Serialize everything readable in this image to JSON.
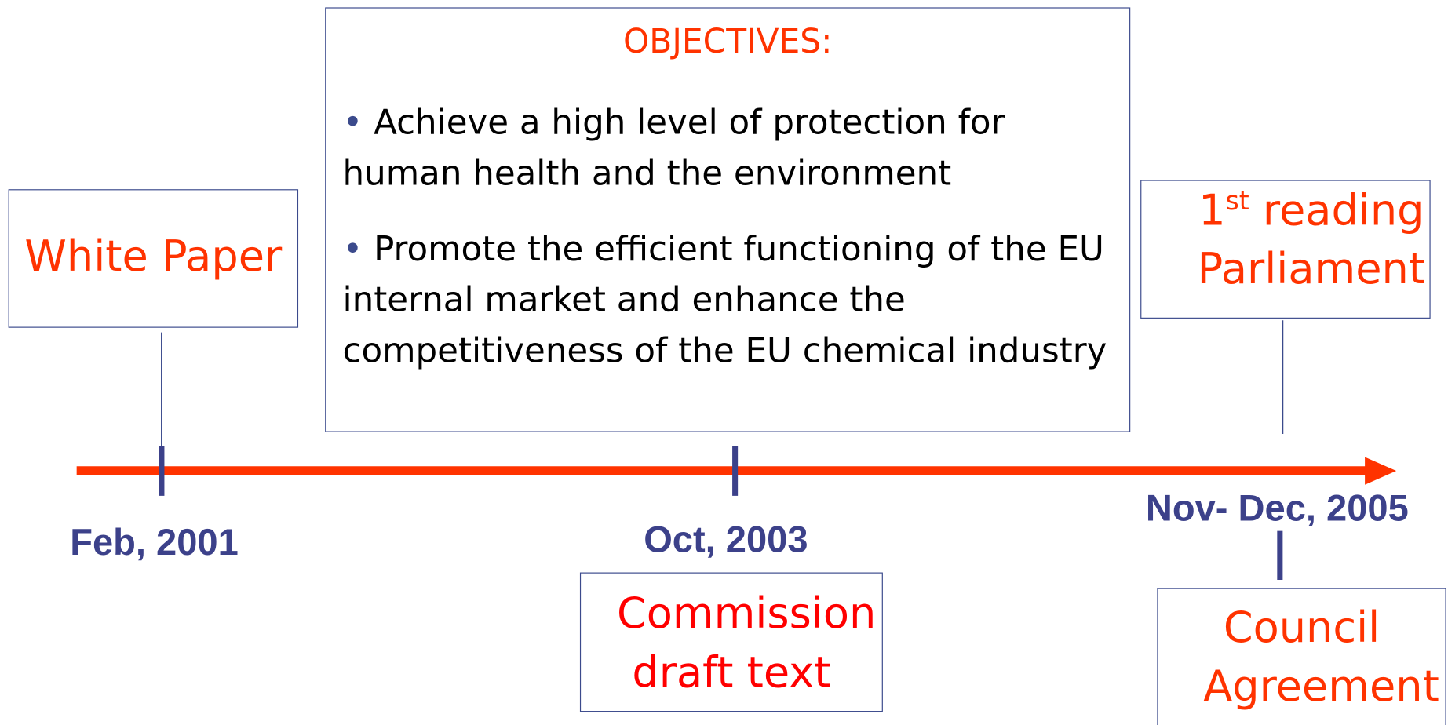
{
  "objectives": {
    "title": "OBJECTIVES:",
    "items": [
      "Achieve a high level of protection for human health and the environment",
      "Promote the efficient functioning of the EU internal market and enhance the competitiveness of the EU chemical industry"
    ]
  },
  "events": [
    {
      "label": "White Paper",
      "date": "Feb, 2001"
    },
    {
      "label": "Commission draft text",
      "date": "Oct, 2003"
    },
    {
      "date": "Nov- Dec, 2005",
      "above": {
        "ordinal": "1",
        "suffix": "st",
        "text": "reading Parliament"
      },
      "below": "Council Agreement"
    }
  ]
}
